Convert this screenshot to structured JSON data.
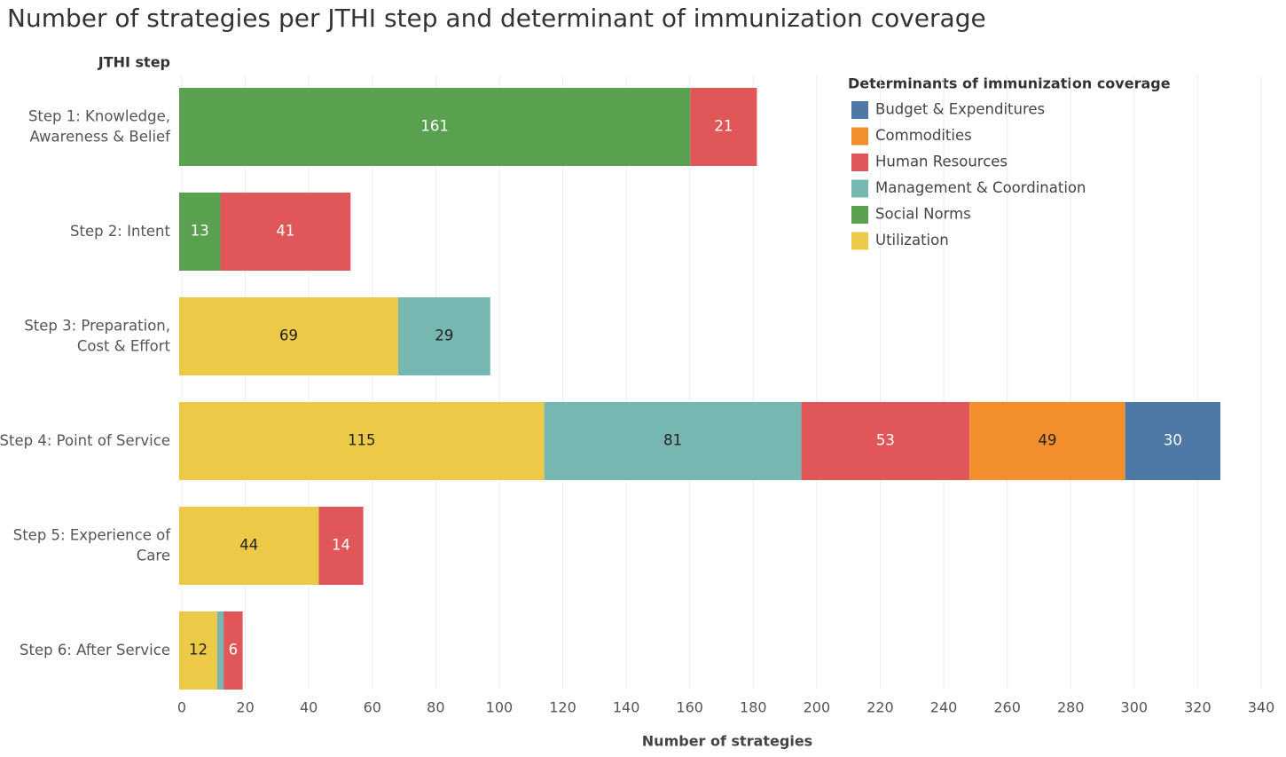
{
  "chart_data": {
    "type": "bar",
    "orientation": "horizontal",
    "stacked": true,
    "title": "Number of strategies per JTHI step and determinant of immunization coverage",
    "y_label": "JTHI step",
    "x_label": "Number of strategies",
    "legend_title": "Determinants of immunization coverage",
    "legend": "top-right",
    "grid": true,
    "categories": [
      "Step 1: Knowledge,\nAwareness & Belief",
      "Step 2: Intent",
      "Step 3: Preparation,\nCost & Effort",
      "Step 4: Point of Service",
      "Step 5: Experience of\nCare",
      "Step 6: After Service"
    ],
    "series": [
      {
        "name": "Budget & Expenditures",
        "color": "#4e79a7",
        "values": [
          null,
          null,
          null,
          30,
          null,
          null
        ]
      },
      {
        "name": "Commodities",
        "color": "#f28e2b",
        "values": [
          null,
          null,
          null,
          49,
          null,
          null
        ]
      },
      {
        "name": "Human Resources",
        "color": "#e15759",
        "values": [
          21,
          41,
          null,
          53,
          14,
          6
        ]
      },
      {
        "name": "Management & Coordination",
        "color": "#76b7b2",
        "values": [
          null,
          null,
          29,
          81,
          null,
          2
        ]
      },
      {
        "name": "Social Norms",
        "color": "#59a14f",
        "values": [
          161,
          13,
          null,
          null,
          null,
          null
        ]
      },
      {
        "name": "Utilization",
        "color": "#edc948",
        "values": [
          null,
          null,
          69,
          115,
          44,
          12
        ]
      }
    ],
    "xlim": [
      0,
      340
    ],
    "xticks": [
      0,
      20,
      40,
      60,
      80,
      100,
      120,
      140,
      160,
      180,
      200,
      220,
      240,
      260,
      280,
      300,
      320,
      340
    ]
  }
}
